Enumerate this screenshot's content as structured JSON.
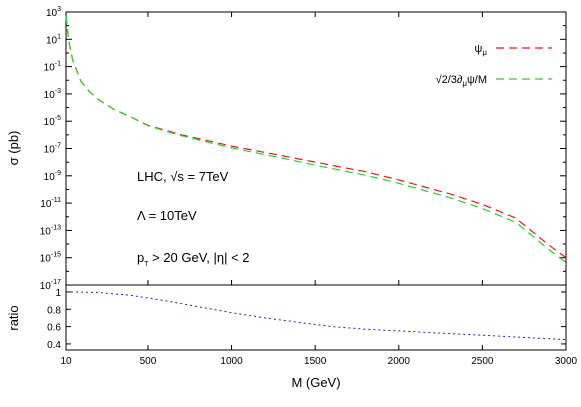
{
  "chart_data": [
    {
      "type": "line",
      "yscale": "log",
      "xlim": [
        10,
        3000
      ],
      "ylim": [
        1e-17,
        1000
      ],
      "ylabel": "σ (pb)",
      "y_ticks": [
        {
          "base": "10",
          "exp": "3",
          "v": 1000.0
        },
        {
          "base": "10",
          "exp": "1",
          "v": 10.0
        },
        {
          "base": "10",
          "exp": "-1",
          "v": 0.1
        },
        {
          "base": "10",
          "exp": "-3",
          "v": 0.001
        },
        {
          "base": "10",
          "exp": "-5",
          "v": 1e-05
        },
        {
          "base": "10",
          "exp": "-7",
          "v": 1e-07
        },
        {
          "base": "10",
          "exp": "-9",
          "v": 1e-09
        },
        {
          "base": "10",
          "exp": "-11",
          "v": 1e-11
        },
        {
          "base": "10",
          "exp": "-13",
          "v": 1e-13
        },
        {
          "base": "10",
          "exp": "-15",
          "v": 1e-15
        },
        {
          "base": "10",
          "exp": "-17",
          "v": 1e-17
        }
      ],
      "legend_position": "top-right",
      "series": [
        {
          "name": "ψ",
          "name_sub": "μ",
          "color": "#e41a1c",
          "dash": "dashed",
          "x": [
            10,
            25,
            50,
            100,
            150,
            200,
            300,
            400,
            500,
            700,
            1000,
            1300,
            1500,
            1800,
            2000,
            2300,
            2500,
            2700,
            2900,
            3000
          ],
          "y": [
            500,
            10,
            0.3,
            0.008,
            0.0015,
            0.0004,
            7e-05,
            2e-05,
            5e-06,
            1e-06,
            1.5e-07,
            3e-08,
            1e-08,
            2e-09,
            5e-10,
            5e-11,
            8e-12,
            8e-13,
            8e-15,
            1e-15
          ]
        },
        {
          "name": "√2/3∂",
          "name_sub": "μ",
          "name_suffix": "ψ/M",
          "color": "#33cc33",
          "dash": "dashed",
          "x": [
            10,
            25,
            50,
            100,
            150,
            200,
            300,
            400,
            500,
            700,
            1000,
            1300,
            1500,
            1800,
            2000,
            2300,
            2500,
            2700,
            2900,
            3000
          ],
          "y": [
            500,
            10,
            0.3,
            0.008,
            0.0015,
            0.0004,
            7e-05,
            2e-05,
            4.7e-06,
            8.7e-07,
            1.1e-07,
            2e-08,
            6e-09,
            1.1e-09,
            2.8e-10,
            2.6e-11,
            4e-12,
            3.9e-13,
            3.7e-15,
            4.5e-16
          ]
        }
      ],
      "annotations": [
        {
          "id": "lhc",
          "parts": [
            "LHC, ",
            "√",
            "s = 7TeV"
          ]
        },
        {
          "id": "lambda",
          "parts": [
            "Λ = 10TeV"
          ]
        },
        {
          "id": "cuts",
          "parts": [
            "p",
            "T",
            " > 20 GeV, ",
            "|",
            "η",
            "|",
            " < 2"
          ]
        }
      ]
    },
    {
      "type": "line",
      "xlabel": "M (GeV)",
      "ylabel": "ratio",
      "xlim": [
        10,
        3000
      ],
      "ylim": [
        0.33,
        1.08
      ],
      "x_ticks": [
        "10",
        "500",
        "1000",
        "1500",
        "2000",
        "2500",
        "3000"
      ],
      "x_tick_values": [
        10,
        500,
        1000,
        1500,
        2000,
        2500,
        3000
      ],
      "y_ticks": [
        "1",
        "0.8",
        "0.6",
        "0.4"
      ],
      "y_tick_values": [
        1,
        0.8,
        0.6,
        0.4
      ],
      "series": [
        {
          "color": "#1f1fd0",
          "dash": "dotted",
          "x": [
            10,
            200,
            400,
            600,
            800,
            1000,
            1200,
            1400,
            1600,
            1800,
            2000,
            2200,
            2400,
            2600,
            2800,
            3000
          ],
          "y": [
            1.0,
            0.995,
            0.96,
            0.9,
            0.83,
            0.76,
            0.7,
            0.65,
            0.6,
            0.57,
            0.55,
            0.53,
            0.51,
            0.49,
            0.47,
            0.45
          ]
        }
      ]
    }
  ]
}
